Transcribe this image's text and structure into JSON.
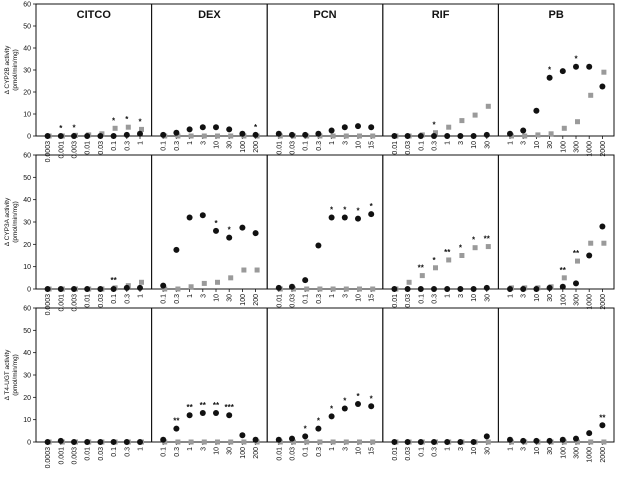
{
  "chart_data": {
    "type": "scatter",
    "colors": {
      "black_series": "#111111",
      "gray_series": "#9a9a9a",
      "baseline": "#111111"
    },
    "rows": [
      {
        "ylabel": [
          "Δ CYP2B activity",
          "(pmol/min/mg)"
        ],
        "ylim": [
          0,
          60
        ],
        "yticks": [
          0,
          10,
          20,
          30,
          40,
          50,
          60
        ]
      },
      {
        "ylabel": [
          "Δ CYP3A activity",
          "(pmol/min/mg)"
        ],
        "ylim": [
          0,
          60
        ],
        "yticks": [
          0,
          10,
          20,
          30,
          40,
          50,
          60
        ]
      },
      {
        "ylabel": [
          "Δ T4-UGT activity",
          "(pmol/min/mg)"
        ],
        "ylim": [
          0,
          60
        ],
        "yticks": [
          0,
          10,
          20,
          30,
          40,
          50,
          60
        ]
      }
    ],
    "compounds": [
      {
        "name": "CITCO",
        "x": [
          "0.0003",
          "0.001",
          "0.003",
          "0.01",
          "0.03",
          "0.1",
          "0.3",
          "1"
        ],
        "rows": [
          {
            "black": [
              0,
              0,
              0,
              0,
              0,
              0,
              0.5,
              1
            ],
            "gray": [
              0,
              0,
              0.3,
              0.5,
              1,
              3.5,
              4,
              3
            ],
            "sig": [
              "",
              "*",
              "*",
              "",
              "",
              "*",
              "*",
              "*"
            ]
          },
          {
            "black": [
              0,
              0,
              0,
              0,
              0,
              0,
              0.5,
              0.5
            ],
            "gray": [
              0,
              0,
              0,
              0,
              0,
              0.5,
              1.5,
              3
            ],
            "sig": [
              "",
              "",
              "",
              "",
              "",
              "**",
              "",
              ""
            ]
          },
          {
            "black": [
              0,
              0.5,
              0,
              0,
              0,
              0,
              0,
              0
            ],
            "gray": [
              0,
              0,
              0,
              0,
              0,
              0,
              0,
              0
            ],
            "sig": [
              "",
              "",
              "",
              "",
              "",
              "",
              "",
              ""
            ]
          }
        ]
      },
      {
        "name": "DEX",
        "x": [
          "0.1",
          "0.3",
          "1",
          "3",
          "10",
          "30",
          "100",
          "200"
        ],
        "rows": [
          {
            "black": [
              0.5,
              1.5,
              3,
              4,
              4,
              3,
              1,
              0.5
            ],
            "gray": [
              0,
              0,
              0,
              0,
              0,
              0,
              0,
              0
            ],
            "sig": [
              "",
              "",
              "",
              "",
              "",
              "",
              "",
              "*"
            ]
          },
          {
            "black": [
              1.5,
              17.5,
              32,
              33,
              26,
              23,
              27.5,
              25
            ],
            "gray": [
              0,
              0,
              1,
              2.5,
              3,
              5,
              8.5,
              8.5
            ],
            "sig": [
              "",
              "",
              "",
              "",
              "*",
              "*",
              "",
              ""
            ]
          },
          {
            "black": [
              1,
              6,
              12,
              13,
              13,
              12,
              3,
              1
            ],
            "gray": [
              0,
              0,
              0,
              0,
              0,
              0,
              0,
              0
            ],
            "sig": [
              "",
              "**",
              "**",
              "**",
              "**",
              "***",
              "",
              ""
            ]
          }
        ]
      },
      {
        "name": "PCN",
        "x": [
          "0.01",
          "0.03",
          "0.1",
          "0.3",
          "1",
          "3",
          "10",
          "15"
        ],
        "rows": [
          {
            "black": [
              1,
              0.5,
              0.5,
              1,
              2.5,
              4,
              4.5,
              4
            ],
            "gray": [
              0,
              0,
              0,
              0,
              0,
              0,
              0,
              0
            ],
            "sig": [
              "",
              "",
              "",
              "",
              "",
              "",
              "",
              ""
            ]
          },
          {
            "black": [
              0.5,
              1,
              4,
              19.5,
              32,
              32,
              31.5,
              33.5
            ],
            "gray": [
              0,
              0,
              0,
              0,
              0,
              0,
              0,
              0
            ],
            "sig": [
              "",
              "",
              "",
              "",
              "*",
              "*",
              "*",
              "*"
            ]
          },
          {
            "black": [
              1,
              1.5,
              2.5,
              6,
              11.5,
              15,
              17,
              16
            ],
            "gray": [
              0,
              0,
              0,
              0,
              0,
              0,
              0,
              0
            ],
            "sig": [
              "",
              "",
              "*",
              "*",
              "*",
              "*",
              "*",
              "*"
            ]
          }
        ]
      },
      {
        "name": "RIF",
        "x": [
          "0.01",
          "0.03",
          "0.1",
          "0.3",
          "1",
          "3",
          "10",
          "30"
        ],
        "rows": [
          {
            "black": [
              0,
              0,
              0,
              0,
              0,
              0,
              0,
              0.5
            ],
            "gray": [
              0,
              0,
              0.5,
              1.5,
              4,
              7,
              9.5,
              13.5
            ],
            "sig": [
              "",
              "",
              "",
              "*",
              "",
              "",
              "",
              ""
            ]
          },
          {
            "black": [
              0,
              0,
              0,
              0,
              0,
              0,
              0,
              0.5
            ],
            "gray": [
              0,
              3,
              6,
              9.5,
              13,
              15,
              18.5,
              19
            ],
            "sig": [
              "",
              "",
              "**",
              "*",
              "**",
              "*",
              "*",
              "**"
            ]
          },
          {
            "black": [
              0,
              0,
              0,
              0,
              0,
              0,
              0,
              2.5
            ],
            "gray": [
              0,
              0,
              0,
              0,
              0,
              0,
              0,
              0
            ],
            "sig": [
              "",
              "",
              "",
              "",
              "",
              "",
              "",
              ""
            ]
          }
        ]
      },
      {
        "name": "PB",
        "x": [
          "1",
          "3",
          "10",
          "30",
          "100",
          "300",
          "1000",
          "2000"
        ],
        "rows": [
          {
            "black": [
              1,
              2.5,
              11.5,
              26.5,
              29.5,
              31.5,
              31.5,
              22.5
            ],
            "gray": [
              0,
              0,
              0.5,
              1,
              3.5,
              6.5,
              18.5,
              29
            ],
            "sig": [
              "",
              "",
              "",
              "*",
              "",
              "*",
              "",
              ""
            ]
          },
          {
            "black": [
              0,
              0,
              0,
              0.5,
              1,
              2.5,
              15,
              28
            ],
            "gray": [
              0.5,
              0.5,
              0.5,
              1,
              5,
              12.5,
              20.5,
              20.5
            ],
            "sig": [
              "",
              "",
              "",
              "",
              "**",
              "**",
              "",
              ""
            ]
          },
          {
            "black": [
              1,
              0.5,
              0.5,
              0.5,
              1,
              1.5,
              4,
              7.5
            ],
            "gray": [
              0,
              0,
              0,
              0,
              0,
              0,
              0,
              0
            ],
            "sig": [
              "",
              "",
              "",
              "",
              "",
              "",
              "",
              "**"
            ]
          }
        ]
      }
    ]
  }
}
